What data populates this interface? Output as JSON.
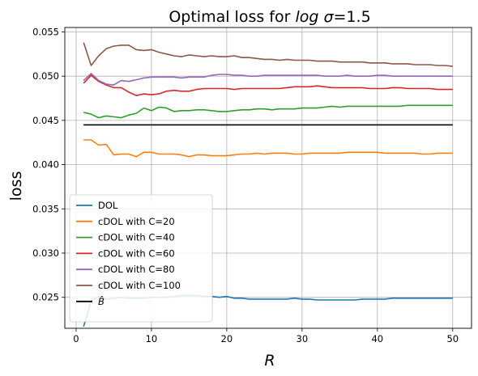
{
  "chart_data": {
    "type": "line",
    "title_prefix": "Optimal loss for ",
    "title_math": "log σ",
    "title_suffix": "=1.5",
    "xlabel": "R",
    "ylabel": "loss",
    "xlim": [
      -1.5,
      52.5
    ],
    "ylim": [
      0.0215,
      0.0555
    ],
    "xticks": [
      0,
      10,
      20,
      30,
      40,
      50
    ],
    "yticks": [
      0.025,
      0.03,
      0.035,
      0.04,
      0.045,
      0.05,
      0.055
    ],
    "ytick_labels": [
      "0.025",
      "0.030",
      "0.035",
      "0.040",
      "0.045",
      "0.050",
      "0.055"
    ],
    "grid": true,
    "legend_position": "lower-left",
    "x": [
      1,
      2,
      3,
      4,
      5,
      6,
      7,
      8,
      9,
      10,
      11,
      12,
      13,
      14,
      15,
      16,
      17,
      18,
      19,
      20,
      21,
      22,
      23,
      24,
      25,
      26,
      27,
      28,
      29,
      30,
      31,
      32,
      33,
      34,
      35,
      36,
      37,
      38,
      39,
      40,
      41,
      42,
      43,
      44,
      45,
      46,
      47,
      48,
      49,
      50
    ],
    "series": [
      {
        "name": "DOL",
        "color": "#1f77b4",
        "values": [
          0.0217,
          0.0246,
          0.0251,
          0.0248,
          0.0249,
          0.025,
          0.0249,
          0.0249,
          0.0249,
          0.025,
          0.025,
          0.025,
          0.0251,
          0.0252,
          0.0252,
          0.0252,
          0.0251,
          0.0251,
          0.025,
          0.0251,
          0.0249,
          0.0249,
          0.0248,
          0.0248,
          0.0248,
          0.0248,
          0.0248,
          0.0248,
          0.0249,
          0.0248,
          0.0248,
          0.0247,
          0.0247,
          0.0247,
          0.0247,
          0.0247,
          0.0247,
          0.0248,
          0.0248,
          0.0248,
          0.0248,
          0.0249,
          0.0249,
          0.0249,
          0.0249,
          0.0249,
          0.0249,
          0.0249,
          0.0249,
          0.0249
        ]
      },
      {
        "name": "cDOL with C=20",
        "color": "#ff7f0e",
        "values": [
          0.0428,
          0.0428,
          0.0422,
          0.0423,
          0.0411,
          0.0412,
          0.0412,
          0.0409,
          0.0414,
          0.0414,
          0.0412,
          0.0412,
          0.0412,
          0.0411,
          0.0409,
          0.0411,
          0.0411,
          0.041,
          0.041,
          0.041,
          0.0411,
          0.0412,
          0.0412,
          0.0413,
          0.0412,
          0.0413,
          0.0413,
          0.0413,
          0.0412,
          0.0412,
          0.0413,
          0.0413,
          0.0413,
          0.0413,
          0.0413,
          0.0414,
          0.0414,
          0.0414,
          0.0414,
          0.0414,
          0.0413,
          0.0413,
          0.0413,
          0.0413,
          0.0413,
          0.0412,
          0.0412,
          0.0413,
          0.0413,
          0.0413
        ]
      },
      {
        "name": "cDOL with C=40",
        "color": "#2ca02c",
        "values": [
          0.0459,
          0.0457,
          0.0453,
          0.0455,
          0.0454,
          0.0453,
          0.0456,
          0.0458,
          0.0464,
          0.0461,
          0.0465,
          0.0464,
          0.046,
          0.0461,
          0.0461,
          0.0462,
          0.0462,
          0.0461,
          0.046,
          0.046,
          0.0461,
          0.0462,
          0.0462,
          0.0463,
          0.0463,
          0.0462,
          0.0463,
          0.0463,
          0.0463,
          0.0464,
          0.0464,
          0.0464,
          0.0465,
          0.0466,
          0.0465,
          0.0466,
          0.0466,
          0.0466,
          0.0466,
          0.0466,
          0.0466,
          0.0466,
          0.0466,
          0.0467,
          0.0467,
          0.0467,
          0.0467,
          0.0467,
          0.0467,
          0.0467
        ]
      },
      {
        "name": "cDOL with C=60",
        "color": "#d62728",
        "values": [
          0.0492,
          0.0501,
          0.0494,
          0.049,
          0.0487,
          0.0487,
          0.0482,
          0.0478,
          0.048,
          0.0479,
          0.048,
          0.0483,
          0.0484,
          0.0483,
          0.0483,
          0.0485,
          0.0486,
          0.0486,
          0.0486,
          0.0486,
          0.0485,
          0.0486,
          0.0486,
          0.0486,
          0.0486,
          0.0486,
          0.0486,
          0.0487,
          0.0488,
          0.0488,
          0.0488,
          0.0489,
          0.0488,
          0.0487,
          0.0487,
          0.0487,
          0.0487,
          0.0487,
          0.0486,
          0.0486,
          0.0486,
          0.0487,
          0.0487,
          0.0486,
          0.0486,
          0.0486,
          0.0486,
          0.0485,
          0.0485,
          0.0485
        ]
      },
      {
        "name": "cDOL with C=80",
        "color": "#9467bd",
        "values": [
          0.0495,
          0.0503,
          0.0495,
          0.0491,
          0.049,
          0.0495,
          0.0494,
          0.0496,
          0.0498,
          0.0499,
          0.0499,
          0.0499,
          0.0499,
          0.0498,
          0.0499,
          0.0499,
          0.0499,
          0.0501,
          0.0502,
          0.0502,
          0.0501,
          0.0501,
          0.05,
          0.05,
          0.0501,
          0.0501,
          0.0501,
          0.0501,
          0.0501,
          0.0501,
          0.0501,
          0.0501,
          0.05,
          0.05,
          0.05,
          0.0501,
          0.05,
          0.05,
          0.05,
          0.0501,
          0.0501,
          0.05,
          0.05,
          0.05,
          0.05,
          0.05,
          0.05,
          0.05,
          0.05,
          0.05
        ]
      },
      {
        "name": "cDOL with C=100",
        "color": "#8c564b",
        "values": [
          0.0538,
          0.0512,
          0.0523,
          0.0531,
          0.0534,
          0.0535,
          0.0535,
          0.053,
          0.0529,
          0.053,
          0.0527,
          0.0525,
          0.0523,
          0.0522,
          0.0524,
          0.0523,
          0.0522,
          0.0523,
          0.0522,
          0.0522,
          0.0523,
          0.0521,
          0.0521,
          0.052,
          0.0519,
          0.0519,
          0.0518,
          0.0519,
          0.0518,
          0.0518,
          0.0518,
          0.0517,
          0.0517,
          0.0517,
          0.0516,
          0.0516,
          0.0516,
          0.0516,
          0.0515,
          0.0515,
          0.0515,
          0.0514,
          0.0514,
          0.0514,
          0.0513,
          0.0513,
          0.0513,
          0.0512,
          0.0512,
          0.0511
        ]
      },
      {
        "name": "B̂",
        "color": "#000000",
        "values": [
          0.0445,
          0.0445,
          0.0445,
          0.0445,
          0.0445,
          0.0445,
          0.0445,
          0.0445,
          0.0445,
          0.0445,
          0.0445,
          0.0445,
          0.0445,
          0.0445,
          0.0445,
          0.0445,
          0.0445,
          0.0445,
          0.0445,
          0.0445,
          0.0445,
          0.0445,
          0.0445,
          0.0445,
          0.0445,
          0.0445,
          0.0445,
          0.0445,
          0.0445,
          0.0445,
          0.0445,
          0.0445,
          0.0445,
          0.0445,
          0.0445,
          0.0445,
          0.0445,
          0.0445,
          0.0445,
          0.0445,
          0.0445,
          0.0445,
          0.0445,
          0.0445,
          0.0445,
          0.0445,
          0.0445,
          0.0445,
          0.0445,
          0.0445
        ]
      }
    ]
  }
}
